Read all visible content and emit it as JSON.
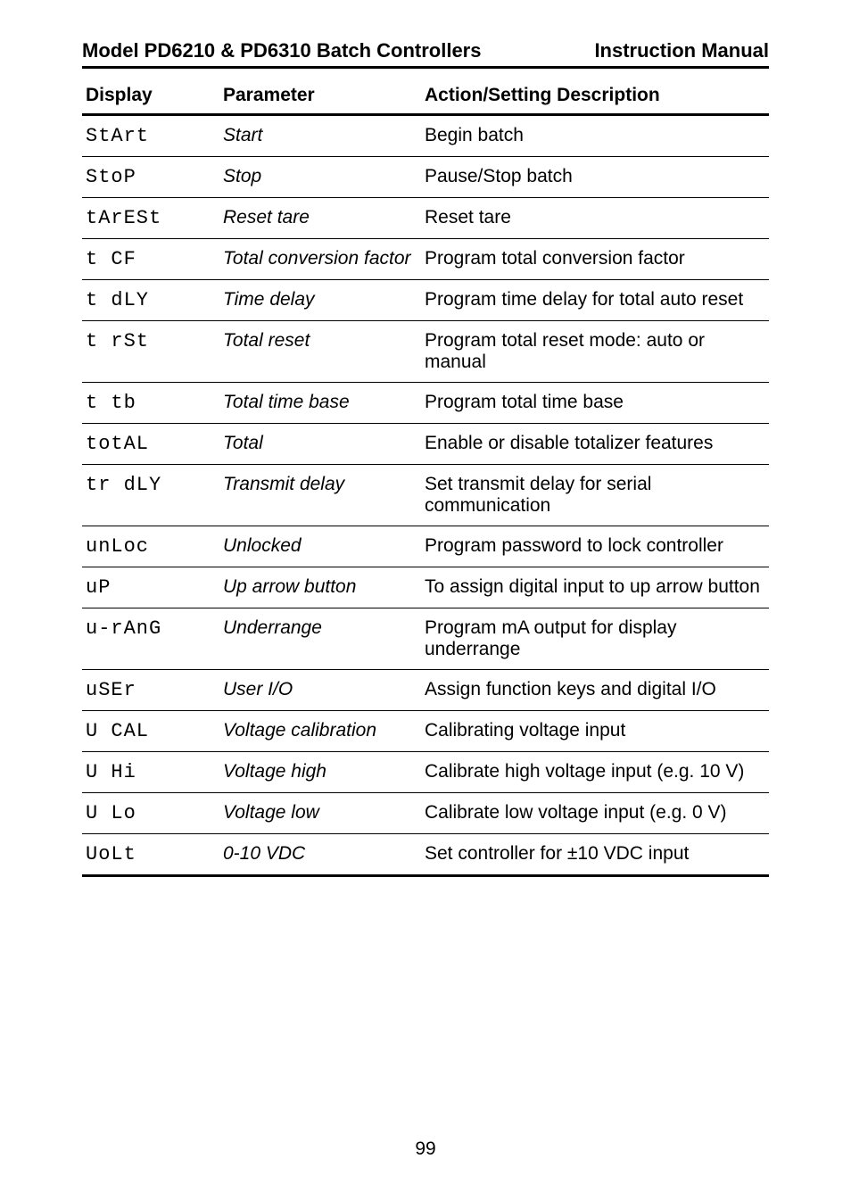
{
  "header": {
    "left": "Model PD6210 & PD6310 Batch Controllers",
    "right": "Instruction Manual"
  },
  "columns": {
    "display": "Display",
    "parameter": "Parameter",
    "action": "Action/Setting Description"
  },
  "rows": [
    {
      "display": "StArt",
      "param": "Start",
      "action": "Begin batch"
    },
    {
      "display": "StoP",
      "param": "Stop",
      "action": "Pause/Stop batch"
    },
    {
      "display": "tArESt",
      "param": "Reset tare",
      "action": "Reset tare"
    },
    {
      "display": "t CF",
      "param": "Total conversion factor",
      "action": "Program total conversion factor"
    },
    {
      "display": "t dLY",
      "param": "Time delay",
      "action": "Program time delay for total auto reset"
    },
    {
      "display": "t rSt",
      "param": "Total reset",
      "action": "Program total reset mode: auto or manual"
    },
    {
      "display": "t tb",
      "param": "Total time base",
      "action": "Program total time base"
    },
    {
      "display": "totAL",
      "param": "Total",
      "action": "Enable or disable totalizer features"
    },
    {
      "display": "tr dLY",
      "param": "Transmit delay",
      "action": "Set transmit delay for serial communication"
    },
    {
      "display": "unLoc",
      "param": "Unlocked",
      "action": "Program password to lock controller"
    },
    {
      "display": "uP",
      "param": "Up arrow button",
      "action": "To assign digital input to up arrow button"
    },
    {
      "display": "u-rAnG",
      "param": "Underrange",
      "action": "Program mA output for display underrange"
    },
    {
      "display": "uSEr",
      "param": "User I/O",
      "action": "Assign function keys and digital I/O"
    },
    {
      "display": "U CAL",
      "param": "Voltage calibration",
      "action": "Calibrating voltage input"
    },
    {
      "display": "U Hi",
      "param": "Voltage high",
      "action": "Calibrate high voltage input (e.g. 10 V)"
    },
    {
      "display": "U Lo",
      "param": "Voltage low",
      "action": "Calibrate low voltage input (e.g. 0 V)"
    },
    {
      "display": "UoLt",
      "param": "0-10 VDC",
      "action": "Set controller for ±10 VDC input"
    }
  ],
  "page_number": "99"
}
